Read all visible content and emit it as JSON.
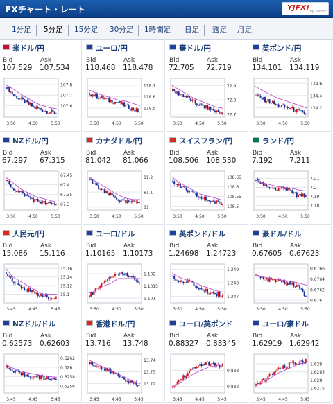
{
  "app": {
    "title": "FXチャート・レート",
    "logo": "YJFX!",
    "logo_sub": "by Yahoo!"
  },
  "tabs": [
    {
      "label": "1分足",
      "active": false
    },
    {
      "label": "5分足",
      "active": true
    },
    {
      "label": "15分足",
      "active": false
    },
    {
      "label": "30分足",
      "active": false
    },
    {
      "label": "1時間足",
      "active": false
    },
    {
      "label": "日足",
      "active": false
    },
    {
      "label": "週足",
      "active": false
    },
    {
      "label": "月足",
      "active": false
    }
  ],
  "labels": {
    "bid": "Bid",
    "ask": "Ask"
  },
  "chart_data": [
    {
      "type": "candlestick",
      "pair": "米ドル/円",
      "bid": "107.529",
      "ask": "107.534",
      "x_ticks": [
        "3:50",
        "4:50",
        "5:50"
      ],
      "y_ticks": [
        "107.8",
        "107.7",
        "107.6"
      ],
      "ylim": [
        107.49,
        107.86
      ],
      "trend": [
        107.78,
        107.7,
        107.66,
        107.62,
        107.58,
        107.56,
        107.54,
        107.53
      ],
      "ma": [
        107.8,
        107.76,
        107.71,
        107.67,
        107.63,
        107.6,
        107.58,
        107.57
      ],
      "flag": "#c8102e"
    },
    {
      "type": "candlestick",
      "pair": "ユーロ/円",
      "bid": "118.468",
      "ask": "118.478",
      "x_ticks": [
        "3:50",
        "4:50",
        "5:50"
      ],
      "y_ticks": [
        "118.7",
        "118.6",
        "118.5"
      ],
      "ylim": [
        118.42,
        118.76
      ],
      "trend": [
        118.63,
        118.6,
        118.58,
        118.56,
        118.55,
        118.52,
        118.49,
        118.47
      ],
      "ma": [
        118.66,
        118.63,
        118.61,
        118.59,
        118.57,
        118.56,
        118.54,
        118.52
      ],
      "flag": "#1f3f9a"
    },
    {
      "type": "candlestick",
      "pair": "豪ドル/円",
      "bid": "72.705",
      "ask": "72.719",
      "x_ticks": [
        "3:50",
        "4:50",
        "5:50"
      ],
      "y_ticks": [
        "72.9",
        "72.8",
        "72.7"
      ],
      "ylim": [
        72.68,
        72.95
      ],
      "trend": [
        72.86,
        72.84,
        72.82,
        72.78,
        72.76,
        72.74,
        72.72,
        72.71
      ],
      "ma": [
        72.9,
        72.87,
        72.84,
        72.81,
        72.79,
        72.77,
        72.75,
        72.74
      ],
      "flag": "#1f3f9a"
    },
    {
      "type": "candlestick",
      "pair": "英ポンド/円",
      "bid": "134.101",
      "ask": "134.119",
      "x_ticks": [
        "3:50",
        "4:50",
        "5:50"
      ],
      "y_ticks": [
        "134.6",
        "134.4",
        "134.2"
      ],
      "ylim": [
        134.05,
        134.68
      ],
      "trend": [
        134.4,
        134.34,
        134.3,
        134.24,
        134.22,
        134.18,
        134.14,
        134.1
      ],
      "ma": [
        134.55,
        134.48,
        134.42,
        134.36,
        134.32,
        134.28,
        134.24,
        134.2
      ],
      "flag": "#1f3f9a"
    },
    {
      "type": "candlestick",
      "pair": "NZドル/円",
      "bid": "67.297",
      "ask": "67.315",
      "x_ticks": [
        "3:50",
        "4:50",
        "5:50"
      ],
      "y_ticks": [
        "67.45",
        "67.4",
        "67.35",
        "67.3"
      ],
      "ylim": [
        67.27,
        67.47
      ],
      "trend": [
        67.42,
        67.38,
        67.36,
        67.34,
        67.32,
        67.31,
        67.3,
        67.3
      ],
      "ma": [
        67.44,
        67.41,
        67.38,
        67.36,
        67.34,
        67.33,
        67.32,
        67.31
      ],
      "flag": "#1f3f9a"
    },
    {
      "type": "candlestick",
      "pair": "カナダドル/円",
      "bid": "81.042",
      "ask": "81.066",
      "x_ticks": [
        "3:50",
        "4:50",
        "5:50"
      ],
      "y_ticks": [
        "81.2",
        "81.1",
        "81"
      ],
      "ylim": [
        80.98,
        81.24
      ],
      "trend": [
        81.18,
        81.14,
        81.1,
        81.08,
        81.05,
        81.03,
        81.03,
        81.04
      ],
      "ma": [
        81.2,
        81.17,
        81.14,
        81.11,
        81.08,
        81.06,
        81.05,
        81.05
      ],
      "flag": "#d52b1e"
    },
    {
      "type": "candlestick",
      "pair": "スイスフラン/円",
      "bid": "108.506",
      "ask": "108.530",
      "x_ticks": [
        "3:50",
        "4:50",
        "5:50"
      ],
      "y_ticks": [
        "108.65",
        "108.6",
        "108.55",
        "108.5"
      ],
      "ylim": [
        108.48,
        108.68
      ],
      "trend": [
        108.63,
        108.6,
        108.58,
        108.56,
        108.54,
        108.53,
        108.52,
        108.51
      ],
      "ma": [
        108.65,
        108.62,
        108.6,
        108.58,
        108.56,
        108.55,
        108.54,
        108.53
      ],
      "flag": "#d52b1e"
    },
    {
      "type": "candlestick",
      "pair": "ランド/円",
      "bid": "7.192",
      "ask": "7.211",
      "x_ticks": [
        "3:50",
        "4:50",
        "5:50"
      ],
      "y_ticks": [
        "7.21",
        "7.2",
        "7.19",
        "7.18"
      ],
      "ylim": [
        7.175,
        7.218
      ],
      "trend": [
        7.208,
        7.204,
        7.2,
        7.197,
        7.199,
        7.195,
        7.19,
        7.192
      ],
      "ma": [
        7.206,
        7.205,
        7.203,
        7.201,
        7.2,
        7.199,
        7.197,
        7.196
      ],
      "flag": "#007a4d"
    },
    {
      "type": "candlestick",
      "pair": "人民元/円",
      "bid": "15.086",
      "ask": "15.116",
      "x_ticks": [
        "3:45",
        "4:45",
        "5:45"
      ],
      "y_ticks": [
        "15.16",
        "15.14",
        "15.12",
        "15.1"
      ],
      "ylim": [
        15.08,
        15.17
      ],
      "trend": [
        15.15,
        15.13,
        15.12,
        15.11,
        15.1,
        15.1,
        15.09,
        15.09
      ],
      "ma": [
        15.16,
        15.14,
        15.13,
        15.12,
        15.11,
        15.1,
        15.1,
        15.1
      ],
      "flag": "#de2910"
    },
    {
      "type": "candlestick",
      "pair": "ユーロ/ドル",
      "bid": "1.10165",
      "ask": "1.10173",
      "x_ticks": [
        "3:50",
        "4:50",
        "5:50"
      ],
      "y_ticks": [
        "1.102",
        "1.1015",
        "1.101"
      ],
      "ylim": [
        1.1008,
        1.1024
      ],
      "trend": [
        1.1011,
        1.1014,
        1.1017,
        1.1019,
        1.102,
        1.102,
        1.1019,
        1.1016
      ],
      "ma": [
        1.1012,
        1.1013,
        1.1015,
        1.1016,
        1.1018,
        1.1018,
        1.1018,
        1.1018
      ],
      "flag": "#1f3f9a"
    },
    {
      "type": "candlestick",
      "pair": "英ポンド/ドル",
      "bid": "1.24698",
      "ask": "1.24723",
      "x_ticks": [
        "3:50",
        "4:50",
        "5:50"
      ],
      "y_ticks": [
        "1.249",
        "1.248",
        "1.247"
      ],
      "ylim": [
        1.2465,
        1.2494
      ],
      "trend": [
        1.2485,
        1.248,
        1.2482,
        1.2478,
        1.2475,
        1.2473,
        1.2472,
        1.247
      ],
      "ma": [
        1.2487,
        1.2484,
        1.2482,
        1.248,
        1.2478,
        1.2476,
        1.2474,
        1.2473
      ],
      "flag": "#1f3f9a"
    },
    {
      "type": "candlestick",
      "pair": "豪ドル/ドル",
      "bid": "0.67605",
      "ask": "0.67623",
      "x_ticks": [
        "3:50",
        "4:50",
        "5:50"
      ],
      "y_ticks": [
        "0.6766",
        "0.6764",
        "0.6762",
        "0.676"
      ],
      "ylim": [
        0.67595,
        0.67668
      ],
      "trend": [
        0.67645,
        0.6764,
        0.67638,
        0.67636,
        0.67634,
        0.6763,
        0.67625,
        0.67607
      ],
      "ma": [
        0.67648,
        0.67644,
        0.67641,
        0.67639,
        0.67637,
        0.67635,
        0.67632,
        0.67628
      ],
      "flag": "#1f3f9a"
    },
    {
      "type": "candlestick",
      "pair": "NZドル/ドル",
      "bid": "0.62573",
      "ask": "0.62603",
      "x_ticks": [
        "3:45",
        "4:45",
        "5:45"
      ],
      "y_ticks": [
        "0.6262",
        "0.626",
        "0.6258",
        "0.6256"
      ],
      "ylim": [
        0.62545,
        0.62628
      ],
      "trend": [
        0.626,
        0.6259,
        0.62585,
        0.62582,
        0.6258,
        0.62578,
        0.62576,
        0.62575
      ],
      "ma": [
        0.62605,
        0.62598,
        0.62592,
        0.62588,
        0.62585,
        0.62582,
        0.6258,
        0.62578
      ],
      "flag": "#1f3f9a"
    },
    {
      "type": "candlestick",
      "pair": "香港ドル/円",
      "bid": "13.716",
      "ask": "13.748",
      "x_ticks": [
        "3:45",
        "4:45",
        "5:45"
      ],
      "y_ticks": [
        "13.74",
        "13.73",
        "13.72"
      ],
      "ylim": [
        13.712,
        13.745
      ],
      "trend": [
        13.738,
        13.735,
        13.732,
        13.73,
        13.727,
        13.724,
        13.72,
        13.718
      ],
      "ma": [
        13.74,
        13.737,
        13.734,
        13.731,
        13.728,
        13.725,
        13.722,
        13.72
      ],
      "flag": "#de2910"
    },
    {
      "type": "candlestick",
      "pair": "ユーロ/英ポンド",
      "bid": "0.88327",
      "ask": "0.88345",
      "x_ticks": [
        "3:45",
        "4:45",
        "5:45"
      ],
      "y_ticks": [
        "0.883",
        "0.882"
      ],
      "ylim": [
        0.8816,
        0.884
      ],
      "trend": [
        0.882,
        0.8824,
        0.8828,
        0.8831,
        0.8834,
        0.8834,
        0.8833,
        0.8833
      ],
      "ma": [
        0.8819,
        0.8822,
        0.8825,
        0.8828,
        0.883,
        0.8832,
        0.8833,
        0.8833
      ],
      "flag": "#1f3f9a"
    },
    {
      "type": "candlestick",
      "pair": "ユーロ/豪ドル",
      "bid": "1.62919",
      "ask": "1.62942",
      "x_ticks": [
        "3:45",
        "4:45",
        "5:45"
      ],
      "y_ticks": [
        "1.629",
        "1.6285",
        "1.628",
        "1.6275"
      ],
      "ylim": [
        1.6272,
        1.6296
      ],
      "trend": [
        1.6277,
        1.628,
        1.6283,
        1.6286,
        1.6288,
        1.629,
        1.6291,
        1.6292
      ],
      "ma": [
        1.6276,
        1.6278,
        1.6281,
        1.6284,
        1.6286,
        1.6288,
        1.629,
        1.6291
      ],
      "flag": "#1f3f9a"
    }
  ]
}
